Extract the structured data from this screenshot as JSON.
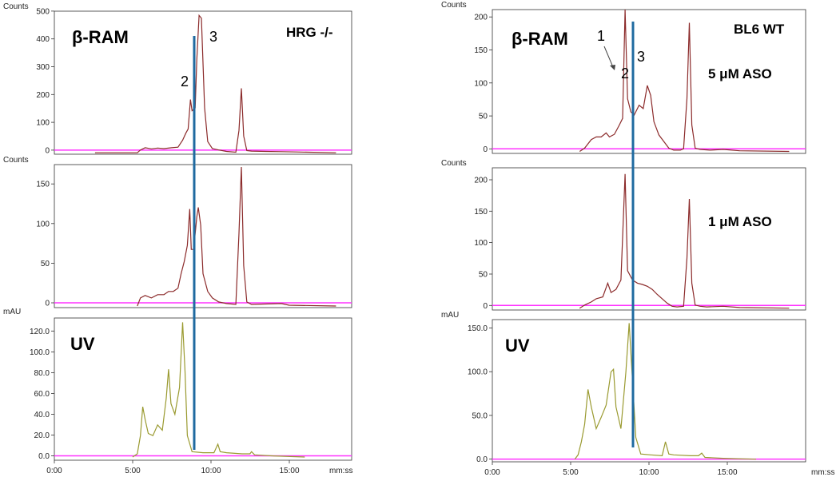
{
  "chart_data": [
    {
      "id": "left-top",
      "type": "line",
      "ylabel": "Counts",
      "ylim": [
        -5,
        505
      ],
      "yticks": [
        0,
        100,
        200,
        300,
        400,
        500
      ],
      "ytick_labels": [
        "0",
        "100",
        "200",
        "300",
        "400",
        "500"
      ],
      "labels": [
        {
          "name": "beta-ram-label",
          "text": "β-RAM",
          "bold": true,
          "size": 22
        },
        {
          "name": "hrg-label",
          "text": "HRG -/-",
          "bold": true,
          "size": 17
        },
        {
          "name": "peak-2-label",
          "text": "2",
          "bold": false,
          "size": 18
        },
        {
          "name": "peak-3-label",
          "text": "3",
          "bold": false,
          "size": 18
        }
      ],
      "series": [
        {
          "color": "#8b2a2a",
          "points": [
            [
              2.6,
              0
            ],
            [
              3.6,
              0
            ],
            [
              5.3,
              0
            ],
            [
              5.5,
              10
            ],
            [
              5.8,
              18
            ],
            [
              6.2,
              14
            ],
            [
              6.6,
              17
            ],
            [
              7,
              15
            ],
            [
              7.5,
              18
            ],
            [
              7.9,
              20
            ],
            [
              8.2,
              45
            ],
            [
              8.4,
              70
            ],
            [
              8.55,
              85
            ],
            [
              8.7,
              190
            ],
            [
              8.8,
              150
            ],
            [
              9.0,
              160
            ],
            [
              9.1,
              330
            ],
            [
              9.25,
              490
            ],
            [
              9.4,
              480
            ],
            [
              9.6,
              160
            ],
            [
              9.8,
              40
            ],
            [
              10.1,
              15
            ],
            [
              10.5,
              10
            ],
            [
              11,
              5
            ],
            [
              11.6,
              2
            ],
            [
              11.8,
              80
            ],
            [
              11.95,
              230
            ],
            [
              12.1,
              60
            ],
            [
              12.3,
              8
            ],
            [
              12.6,
              6
            ],
            [
              13.5,
              5
            ],
            [
              14.5,
              4
            ],
            [
              15.5,
              3
            ],
            [
              18,
              0
            ]
          ]
        }
      ],
      "reference_lines": [
        {
          "value": 0,
          "color": "#ff33ff"
        }
      ]
    },
    {
      "id": "left-middle",
      "type": "line",
      "ylabel": "Counts",
      "ylim": [
        -2,
        175
      ],
      "yticks": [
        0,
        50,
        100,
        150
      ],
      "ytick_labels": [
        "0",
        "50",
        "100",
        "150"
      ],
      "labels": [],
      "series": [
        {
          "color": "#8b2a2a",
          "points": [
            [
              5.3,
              0
            ],
            [
              5.5,
              10
            ],
            [
              5.8,
              13
            ],
            [
              6.2,
              10
            ],
            [
              6.6,
              14
            ],
            [
              7,
              14
            ],
            [
              7.3,
              18
            ],
            [
              7.6,
              18
            ],
            [
              7.9,
              22
            ],
            [
              8.1,
              40
            ],
            [
              8.3,
              55
            ],
            [
              8.5,
              75
            ],
            [
              8.65,
              120
            ],
            [
              8.75,
              70
            ],
            [
              8.9,
              70
            ],
            [
              9.1,
              110
            ],
            [
              9.2,
              122
            ],
            [
              9.35,
              100
            ],
            [
              9.5,
              40
            ],
            [
              9.8,
              18
            ],
            [
              10.1,
              10
            ],
            [
              10.5,
              5
            ],
            [
              11,
              3
            ],
            [
              11.6,
              2
            ],
            [
              11.8,
              90
            ],
            [
              11.95,
              172
            ],
            [
              12.1,
              50
            ],
            [
              12.3,
              5
            ],
            [
              12.6,
              2
            ],
            [
              14.5,
              3
            ],
            [
              15,
              1
            ],
            [
              18,
              0
            ]
          ]
        }
      ],
      "reference_lines": [
        {
          "value": 0,
          "color": "#ff33ff"
        }
      ]
    },
    {
      "id": "left-bottom",
      "type": "line",
      "ylabel": "mAU",
      "xlabel": "mm:ss",
      "ylim": [
        -3,
        130
      ],
      "yticks": [
        0,
        20,
        40,
        60,
        80,
        100,
        120
      ],
      "ytick_labels": [
        "0.0",
        "20.0",
        "40.0",
        "60.0",
        "80.0",
        "100.0",
        "120.0"
      ],
      "xlim": [
        0,
        20
      ],
      "xticks": [
        0,
        5,
        10,
        15
      ],
      "xtick_labels": [
        "0:00",
        "5:00",
        "10:00",
        "15:00"
      ],
      "labels": [
        {
          "name": "uv-label",
          "text": "UV",
          "bold": true,
          "size": 22
        }
      ],
      "series": [
        {
          "color": "#9a9a30",
          "points": [
            [
              5,
              0
            ],
            [
              5.3,
              3
            ],
            [
              5.5,
              20
            ],
            [
              5.65,
              47
            ],
            [
              5.8,
              35
            ],
            [
              6,
              22
            ],
            [
              6.3,
              20
            ],
            [
              6.6,
              30
            ],
            [
              6.9,
              25
            ],
            [
              7.15,
              55
            ],
            [
              7.3,
              82
            ],
            [
              7.45,
              50
            ],
            [
              7.7,
              40
            ],
            [
              8,
              65
            ],
            [
              8.2,
              126
            ],
            [
              8.35,
              80
            ],
            [
              8.5,
              20
            ],
            [
              8.8,
              5
            ],
            [
              9.5,
              4
            ],
            [
              10.2,
              4
            ],
            [
              10.45,
              12
            ],
            [
              10.6,
              5
            ],
            [
              11,
              4
            ],
            [
              12,
              3
            ],
            [
              12.5,
              3
            ],
            [
              12.6,
              5
            ],
            [
              12.8,
              2
            ],
            [
              14,
              1
            ],
            [
              16,
              0
            ]
          ]
        }
      ],
      "reference_lines": [
        {
          "value": 0,
          "color": "#ff33ff"
        }
      ]
    },
    {
      "id": "right-top",
      "type": "line",
      "ylabel": "Counts",
      "ylim": [
        -3,
        215
      ],
      "yticks": [
        0,
        50,
        100,
        150,
        200
      ],
      "ytick_labels": [
        "0",
        "50",
        "100",
        "150",
        "200"
      ],
      "labels": [
        {
          "name": "beta-ram-label",
          "text": "β-RAM",
          "bold": true,
          "size": 22
        },
        {
          "name": "bl6-wt-label",
          "text": "BL6 WT",
          "bold": true,
          "size": 17
        },
        {
          "name": "aso-5-label",
          "text": "5 μM ASO",
          "bold": true,
          "size": 17
        },
        {
          "name": "peak-1-label",
          "text": "1",
          "bold": false,
          "size": 18
        },
        {
          "name": "peak-2-label",
          "text": "2",
          "bold": false,
          "size": 18
        },
        {
          "name": "peak-3-label",
          "text": "3",
          "bold": false,
          "size": 18
        }
      ],
      "series": [
        {
          "color": "#8b2a2a",
          "points": [
            [
              5.3,
              0
            ],
            [
              5.6,
              5
            ],
            [
              6,
              18
            ],
            [
              6.3,
              22
            ],
            [
              6.6,
              22
            ],
            [
              6.9,
              28
            ],
            [
              7.1,
              22
            ],
            [
              7.4,
              26
            ],
            [
              7.7,
              40
            ],
            [
              7.9,
              50
            ],
            [
              8.05,
              215
            ],
            [
              8.2,
              80
            ],
            [
              8.4,
              60
            ],
            [
              8.6,
              55
            ],
            [
              8.9,
              70
            ],
            [
              9.15,
              65
            ],
            [
              9.4,
              100
            ],
            [
              9.6,
              85
            ],
            [
              9.8,
              45
            ],
            [
              10.1,
              25
            ],
            [
              10.4,
              15
            ],
            [
              10.7,
              5
            ],
            [
              11,
              2
            ],
            [
              11.4,
              2
            ],
            [
              11.6,
              4
            ],
            [
              11.8,
              80
            ],
            [
              11.95,
              195
            ],
            [
              12.1,
              40
            ],
            [
              12.3,
              5
            ],
            [
              12.6,
              3
            ],
            [
              13.2,
              2
            ],
            [
              14,
              3
            ],
            [
              15,
              1
            ],
            [
              18,
              0
            ]
          ]
        }
      ],
      "reference_lines": [
        {
          "value": 0,
          "color": "#ff33ff"
        }
      ]
    },
    {
      "id": "right-middle",
      "type": "line",
      "ylabel": "Counts",
      "ylim": [
        -3,
        225
      ],
      "yticks": [
        0,
        50,
        100,
        150,
        200
      ],
      "ytick_labels": [
        "0",
        "50",
        "100",
        "150",
        "200"
      ],
      "labels": [
        {
          "name": "aso-1-label",
          "text": "1 μM ASO",
          "bold": true,
          "size": 17
        }
      ],
      "series": [
        {
          "color": "#8b2a2a",
          "points": [
            [
              5.3,
              0
            ],
            [
              5.6,
              5
            ],
            [
              6,
              10
            ],
            [
              6.3,
              15
            ],
            [
              6.7,
              18
            ],
            [
              7,
              40
            ],
            [
              7.2,
              25
            ],
            [
              7.5,
              30
            ],
            [
              7.8,
              45
            ],
            [
              8.05,
              215
            ],
            [
              8.2,
              60
            ],
            [
              8.5,
              45
            ],
            [
              8.8,
              40
            ],
            [
              9.1,
              38
            ],
            [
              9.4,
              35
            ],
            [
              9.7,
              30
            ],
            [
              10,
              22
            ],
            [
              10.3,
              15
            ],
            [
              10.6,
              8
            ],
            [
              10.9,
              3
            ],
            [
              11.2,
              2
            ],
            [
              11.6,
              3
            ],
            [
              11.8,
              80
            ],
            [
              11.95,
              175
            ],
            [
              12.1,
              40
            ],
            [
              12.3,
              5
            ],
            [
              12.6,
              3
            ],
            [
              13,
              2
            ],
            [
              14,
              3
            ],
            [
              15,
              1
            ],
            [
              18,
              0
            ]
          ]
        }
      ],
      "reference_lines": [
        {
          "value": 0,
          "color": "#ff33ff"
        }
      ]
    },
    {
      "id": "right-bottom",
      "type": "line",
      "ylabel": "mAU",
      "xlabel": "mm:ss",
      "ylim": [
        -3,
        160
      ],
      "yticks": [
        0,
        50,
        100,
        150
      ],
      "ytick_labels": [
        "0.0",
        "50.0",
        "100.0",
        "150.0"
      ],
      "xlim": [
        0,
        20
      ],
      "xticks": [
        0,
        5,
        10,
        15
      ],
      "xtick_labels": [
        "0:00",
        "5:00",
        "10:00",
        "15:00"
      ],
      "labels": [
        {
          "name": "uv-label",
          "text": "UV",
          "bold": true,
          "size": 22
        }
      ],
      "series": [
        {
          "color": "#9a9a30",
          "points": [
            [
              5,
              0
            ],
            [
              5.2,
              5
            ],
            [
              5.4,
              20
            ],
            [
              5.6,
              40
            ],
            [
              5.8,
              80
            ],
            [
              6,
              60
            ],
            [
              6.3,
              35
            ],
            [
              6.6,
              48
            ],
            [
              6.9,
              62
            ],
            [
              7.2,
              100
            ],
            [
              7.35,
              103
            ],
            [
              7.5,
              60
            ],
            [
              7.8,
              35
            ],
            [
              8.1,
              100
            ],
            [
              8.3,
              156
            ],
            [
              8.5,
              90
            ],
            [
              8.7,
              25
            ],
            [
              9,
              6
            ],
            [
              9.6,
              5
            ],
            [
              10.3,
              4
            ],
            [
              10.5,
              20
            ],
            [
              10.7,
              6
            ],
            [
              11,
              5
            ],
            [
              12,
              4
            ],
            [
              12.5,
              4
            ],
            [
              12.7,
              7
            ],
            [
              12.9,
              2
            ],
            [
              14,
              1
            ],
            [
              16,
              0
            ]
          ]
        }
      ],
      "reference_lines": [
        {
          "value": 0,
          "color": "#ff33ff"
        }
      ]
    }
  ]
}
